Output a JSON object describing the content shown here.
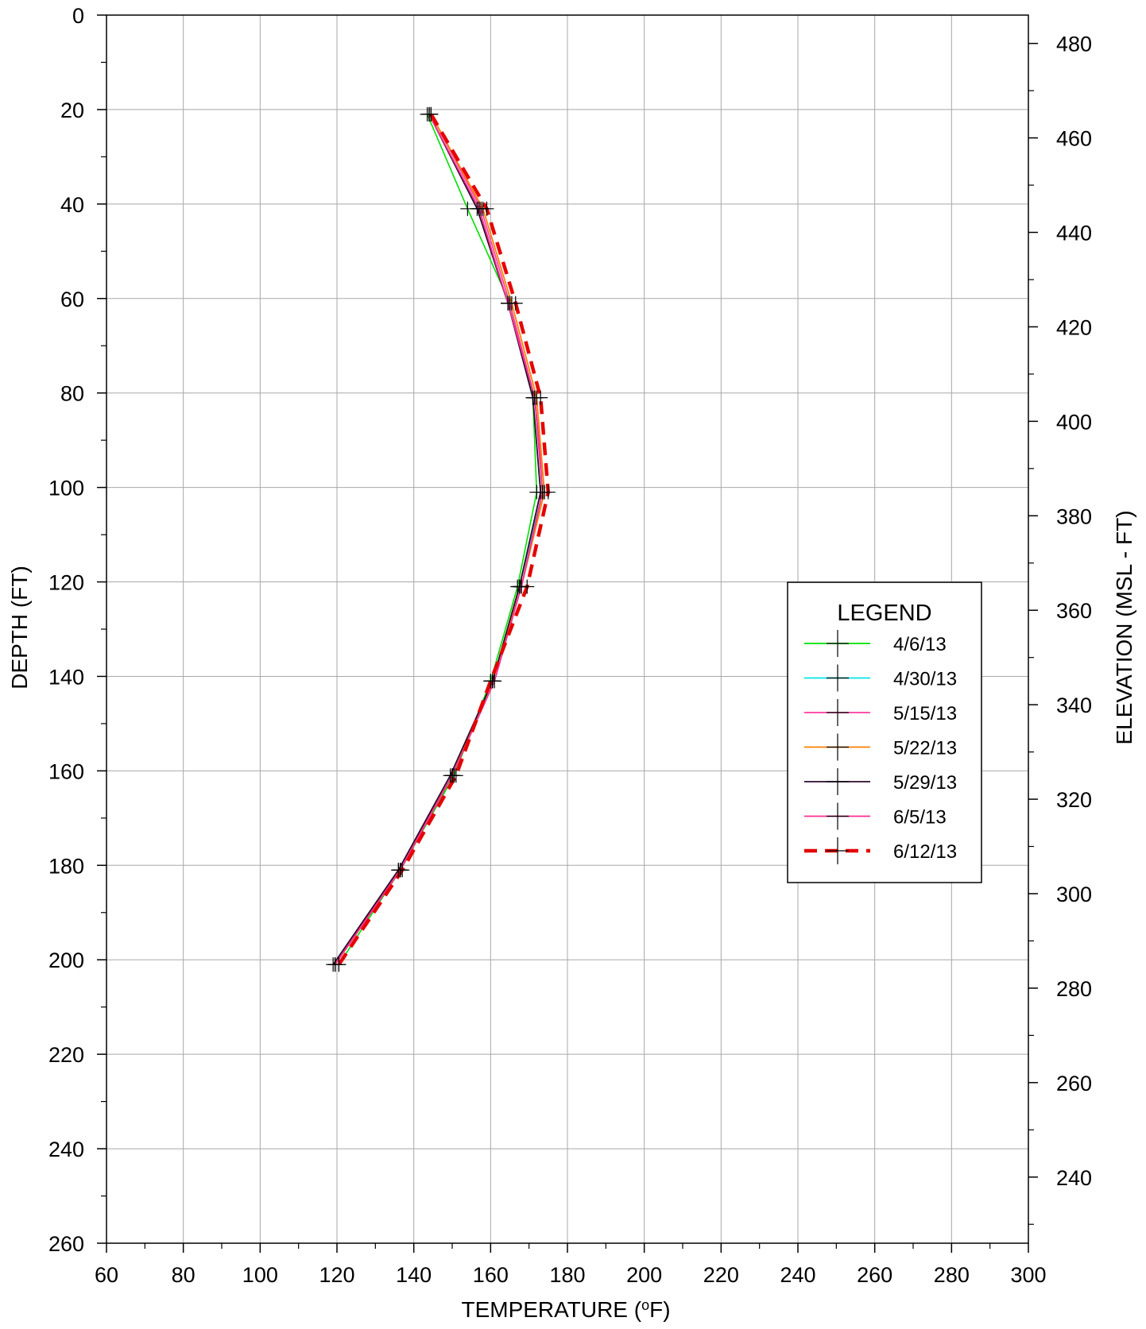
{
  "chart_data": {
    "type": "line",
    "title": "",
    "xlabel": "TEMPERATURE (",
    "xlabel_sup": "o",
    "xlabel_unit": "F)",
    "ylabel": "DEPTH (FT)",
    "y2label": "ELEVATION (MSL - FT)",
    "xlim": [
      60,
      300
    ],
    "ylim": [
      0,
      260
    ],
    "y_inverted": true,
    "y2lim": [
      486,
      226
    ],
    "x_ticks": [
      60,
      80,
      100,
      120,
      140,
      160,
      180,
      200,
      220,
      240,
      260,
      280,
      300
    ],
    "y_ticks": [
      0,
      20,
      40,
      60,
      80,
      100,
      120,
      140,
      160,
      180,
      200,
      220,
      240,
      260
    ],
    "y2_ticks": [
      480,
      460,
      440,
      420,
      400,
      380,
      360,
      340,
      320,
      300,
      280,
      260,
      240
    ],
    "grid": true,
    "legend_title": "LEGEND",
    "legend_position": "right",
    "depths": [
      21,
      41,
      61,
      81,
      101,
      121,
      141,
      161,
      181,
      201
    ],
    "series": [
      {
        "name": "4/6/13",
        "color": "#00e000",
        "dash": false,
        "width": 1.6,
        "x": [
          143.5,
          154,
          165,
          171,
          172,
          167,
          160,
          150.5,
          136.5,
          120.5
        ]
      },
      {
        "name": "4/30/13",
        "color": "#00e5e5",
        "dash": false,
        "width": 1.6,
        "x": [
          144,
          157,
          164.5,
          171.5,
          173.5,
          167.5,
          160.5,
          150,
          136.5,
          119.5
        ]
      },
      {
        "name": "5/15/13",
        "color": "#ff3aa0",
        "dash": false,
        "width": 1.6,
        "x": [
          144.5,
          157.5,
          165,
          171.5,
          174,
          168,
          160.5,
          150,
          136,
          119.5
        ]
      },
      {
        "name": "5/22/13",
        "color": "#ff8000",
        "dash": false,
        "width": 1.8,
        "x": [
          144.5,
          158,
          165.5,
          172,
          174,
          168,
          160.5,
          150,
          136.5,
          119.5
        ]
      },
      {
        "name": "5/29/13",
        "color": "#2d0a2d",
        "dash": false,
        "width": 1.8,
        "x": [
          144,
          156.5,
          164.5,
          171,
          173,
          167.5,
          160.5,
          149.5,
          136,
          119
        ]
      },
      {
        "name": "6/5/13",
        "color": "#ff2d8f",
        "dash": false,
        "width": 1.8,
        "x": [
          144,
          157,
          164.5,
          171.5,
          173.5,
          168,
          161,
          150,
          136.5,
          119.5
        ]
      },
      {
        "name": "6/12/13",
        "color": "#e60000",
        "dash": true,
        "width": 4.5,
        "x": [
          144.5,
          159,
          166.5,
          173,
          175,
          169.5,
          160,
          151,
          137,
          120.5
        ]
      }
    ]
  }
}
